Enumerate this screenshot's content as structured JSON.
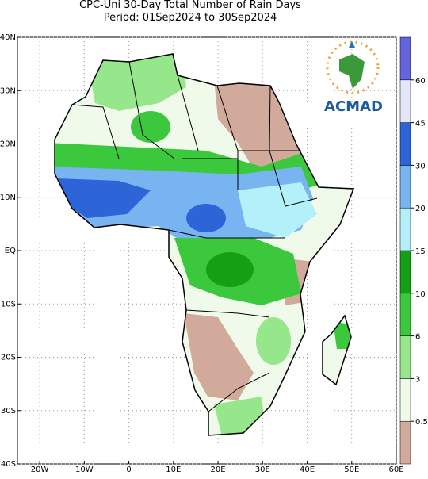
{
  "header": {
    "title": "CPC-Uni 30-Day Total Number of Rain Days",
    "subtitle": "Period: 01Sep2024 to 30Sep2024"
  },
  "map": {
    "xlim": [
      -25,
      60
    ],
    "ylim": [
      -40,
      40
    ],
    "grid": true,
    "xticks": [
      {
        "value": -20,
        "label": "20W"
      },
      {
        "value": -10,
        "label": "10W"
      },
      0,
      {
        "value": 10,
        "label": "10E"
      },
      {
        "value": 20,
        "label": "20E"
      },
      {
        "value": 30,
        "label": "30E"
      },
      {
        "value": 40,
        "label": "40E"
      },
      {
        "value": 50,
        "label": "50E"
      },
      {
        "value": 60,
        "label": "60E"
      }
    ],
    "yticks": [
      {
        "value": 40,
        "label": "40N"
      },
      {
        "value": 30,
        "label": "30N"
      },
      {
        "value": 20,
        "label": "20N"
      },
      {
        "value": 10,
        "label": "10N"
      },
      {
        "value": 0,
        "label": "EQ"
      },
      {
        "value": -10,
        "label": "10S"
      },
      {
        "value": -20,
        "label": "20S"
      },
      {
        "value": -30,
        "label": "30S"
      },
      {
        "value": -40,
        "label": "40S"
      }
    ]
  },
  "colorbar": {
    "levels": [
      0.5,
      3,
      6,
      10,
      15,
      20,
      30,
      45,
      60
    ],
    "colors": [
      "#d2aa9b",
      "#f0faeb",
      "#96e68c",
      "#3cc83c",
      "#14a014",
      "#b4f0fa",
      "#78b4f0",
      "#2d64d7",
      "#e6e6fa",
      "#6464dc"
    ]
  },
  "logo": {
    "text": "ACMAD"
  }
}
